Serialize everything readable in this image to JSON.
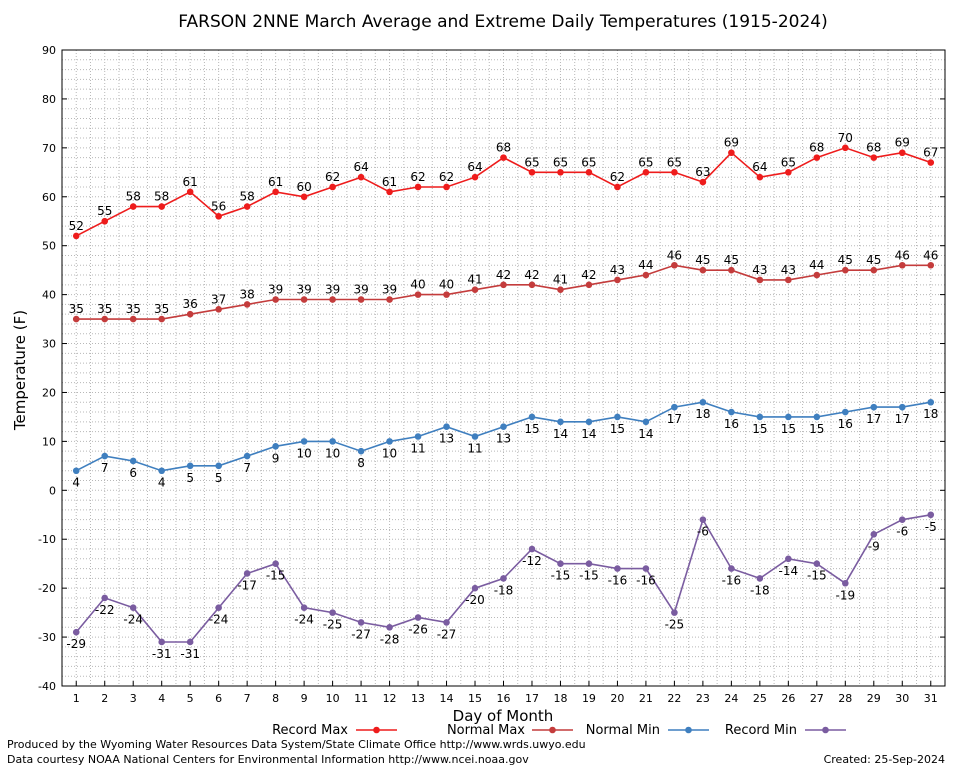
{
  "chart_data": {
    "type": "line",
    "title": "FARSON 2NNE March Average and Extreme Daily Temperatures (1915-2024)",
    "xlabel": "Day of Month",
    "ylabel": "Temperature (F)",
    "ylim": [
      -40,
      90
    ],
    "xlim": [
      0.5,
      31.5
    ],
    "yticks": [
      "90",
      "80",
      "70",
      "60",
      "50",
      "40",
      "30",
      "20",
      "10",
      "0",
      "-10",
      "-20",
      "-30",
      "-40"
    ],
    "grid": true,
    "x": [
      "1",
      "2",
      "3",
      "4",
      "5",
      "6",
      "7",
      "8",
      "9",
      "10",
      "11",
      "12",
      "13",
      "14",
      "15",
      "16",
      "17",
      "18",
      "19",
      "20",
      "21",
      "22",
      "23",
      "24",
      "25",
      "26",
      "27",
      "28",
      "29",
      "30",
      "31"
    ],
    "series": [
      {
        "name": "Record Max",
        "color": "#ee1c1c",
        "values": [
          52,
          55,
          58,
          58,
          61,
          56,
          58,
          61,
          60,
          62,
          64,
          61,
          62,
          62,
          64,
          68,
          65,
          65,
          65,
          62,
          65,
          65,
          63,
          69,
          64,
          65,
          68,
          70,
          68,
          69,
          67
        ]
      },
      {
        "name": "Normal Max",
        "color": "#c43c3c",
        "values": [
          35,
          35,
          35,
          35,
          36,
          37,
          38,
          39,
          39,
          39,
          39,
          39,
          40,
          40,
          41,
          42,
          42,
          41,
          42,
          43,
          44,
          46,
          45,
          45,
          43,
          43,
          44,
          45,
          45,
          46,
          46
        ]
      },
      {
        "name": "Normal Min",
        "color": "#3f7fbf",
        "values": [
          4,
          7,
          6,
          4,
          5,
          5,
          7,
          9,
          10,
          10,
          8,
          10,
          11,
          13,
          11,
          13,
          15,
          14,
          14,
          15,
          14,
          17,
          18,
          16,
          15,
          15,
          15,
          16,
          17,
          17,
          18
        ]
      },
      {
        "name": "Record Min",
        "color": "#7a5ca0",
        "values": [
          -29,
          -22,
          -24,
          -31,
          -31,
          -24,
          -17,
          -15,
          -24,
          -25,
          -27,
          -28,
          -26,
          -27,
          -20,
          -18,
          -12,
          -15,
          -15,
          -16,
          -16,
          -25,
          -6,
          -16,
          -18,
          -14,
          -15,
          -19,
          -9,
          -6,
          -5
        ]
      }
    ]
  },
  "footer": {
    "produced_by": "Produced by the Wyoming Water Resources Data System/State Climate Office http://www.wrds.uwyo.edu",
    "courtesy": "Data courtesy NOAA National Centers for Environmental Information http://www.ncei.noaa.gov",
    "created": "Created:  25-Sep-2024"
  }
}
